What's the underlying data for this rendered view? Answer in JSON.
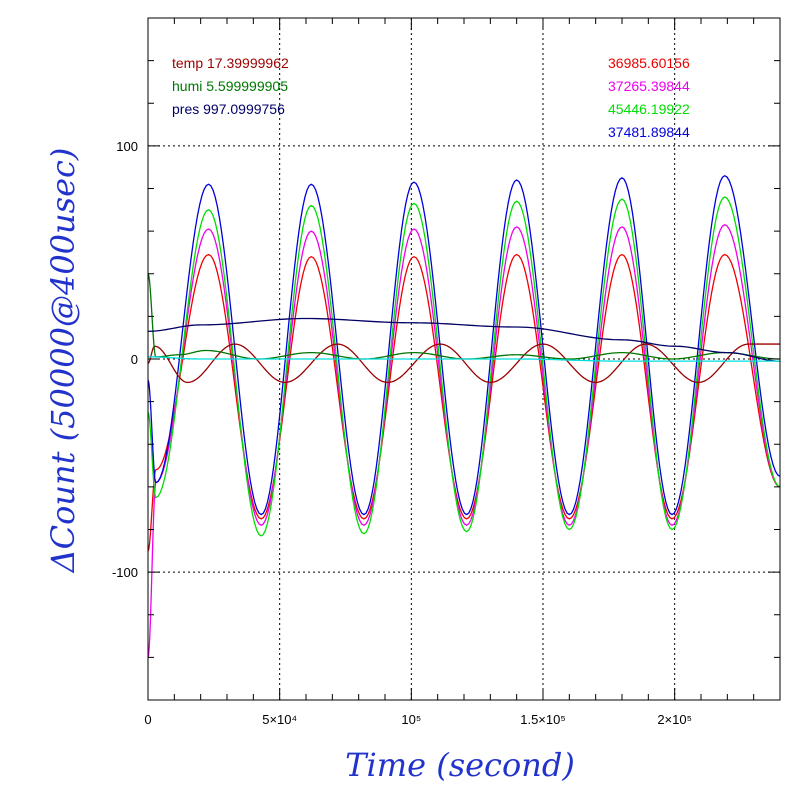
{
  "chart_data": {
    "type": "line",
    "xlabel": "Time (second)",
    "ylabel": "ΔCount (50000@400usec)",
    "xlim": [
      0,
      240000
    ],
    "ylim": [
      -160,
      160
    ],
    "x_ticks": [
      {
        "value": 0,
        "label": "0"
      },
      {
        "value": 50000,
        "label": "5×10⁴"
      },
      {
        "value": 100000,
        "label": "10⁵"
      },
      {
        "value": 150000,
        "label": "1.5×10⁵"
      },
      {
        "value": 200000,
        "label": "2×10⁵"
      }
    ],
    "y_ticks": [
      {
        "value": 100,
        "label": "100"
      },
      {
        "value": 0,
        "label": "0"
      },
      {
        "value": -100,
        "label": "-100"
      }
    ],
    "grid": true,
    "legend_left": [
      {
        "text": "temp 17.39999962",
        "color": "#990000"
      },
      {
        "text": "humi 5.599999905",
        "color": "#007700"
      },
      {
        "text": "pres 997.0999756",
        "color": "#000066"
      }
    ],
    "legend_right": [
      {
        "text": "36985.60156",
        "color": "#ee0000"
      },
      {
        "text": "37265.39844",
        "color": "#ee00ee"
      },
      {
        "text": "45446.19922",
        "color": "#00dd00"
      },
      {
        "text": "37481.89844",
        "color": "#0000dd"
      }
    ],
    "series": [
      {
        "name": "36985.60156",
        "color": "#ee0000",
        "sample_x": [
          0,
          3000,
          23000,
          43000,
          62000,
          82000,
          101000,
          121000,
          140000,
          160000,
          180000,
          199000,
          219000,
          240000
        ],
        "values": [
          -90,
          -52,
          49,
          -75,
          48,
          -75,
          48,
          -75,
          49,
          -75,
          49,
          -75,
          49,
          -60
        ]
      },
      {
        "name": "37265.39844",
        "color": "#ee00ee",
        "sample_x": [
          0,
          3000,
          23000,
          43000,
          62000,
          82000,
          101000,
          121000,
          140000,
          160000,
          180000,
          199000,
          219000,
          240000
        ],
        "values": [
          -140,
          -58,
          61,
          -78,
          60,
          -78,
          61,
          -78,
          62,
          -78,
          62,
          -78,
          63,
          -60
        ]
      },
      {
        "name": "45446.19922",
        "color": "#00dd00",
        "sample_x": [
          0,
          3000,
          23000,
          43000,
          62000,
          82000,
          101000,
          121000,
          140000,
          160000,
          180000,
          199000,
          219000,
          240000
        ],
        "values": [
          -25,
          -65,
          70,
          -83,
          72,
          -82,
          73,
          -81,
          74,
          -80,
          75,
          -80,
          76,
          -60
        ]
      },
      {
        "name": "37481.89844",
        "color": "#0000dd",
        "sample_x": [
          0,
          3000,
          23000,
          43000,
          62000,
          82000,
          101000,
          121000,
          140000,
          160000,
          180000,
          199000,
          219000,
          240000
        ],
        "values": [
          -10,
          -58,
          82,
          -73,
          82,
          -73,
          83,
          -73,
          84,
          -73,
          85,
          -73,
          86,
          -55
        ]
      },
      {
        "name": "temp 17.39999962",
        "color": "#990000",
        "sample_x": [
          0,
          2500,
          15000,
          33000,
          52000,
          72000,
          91000,
          111000,
          130000,
          150000,
          170000,
          189000,
          209000,
          228000,
          240000
        ],
        "values": [
          -2,
          6,
          -11,
          7,
          -11,
          7,
          -11,
          7,
          -11,
          7,
          -11,
          7,
          -11,
          7,
          7
        ]
      },
      {
        "name": "humi 5.599999905",
        "color": "#007700",
        "sample_x": [
          0,
          3000,
          12000,
          22000,
          42000,
          62000,
          82000,
          101000,
          121000,
          140000,
          160000,
          180000,
          199000,
          219000,
          240000
        ],
        "values": [
          40,
          1,
          2,
          4,
          0,
          3,
          0,
          3,
          0,
          2,
          0,
          3,
          0,
          3,
          0
        ]
      },
      {
        "name": "pres 997.0999756",
        "color": "#000066",
        "sample_x": [
          0,
          20000,
          60000,
          100000,
          140000,
          180000,
          200000,
          220000,
          240000
        ],
        "values": [
          13,
          16,
          19,
          17,
          15,
          9,
          6,
          3,
          -1
        ]
      },
      {
        "name": "cyan",
        "color": "#00dddd",
        "sample_x": [
          0,
          20000,
          60000,
          100000,
          140000,
          180000,
          220000,
          240000
        ],
        "values": [
          1,
          0,
          0,
          0,
          0,
          -1,
          -1,
          -1
        ]
      }
    ]
  }
}
